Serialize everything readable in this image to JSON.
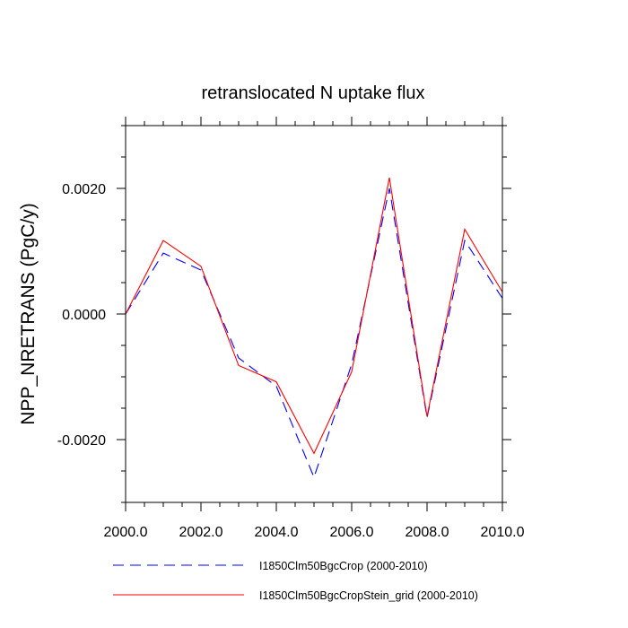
{
  "chart_data": {
    "type": "line",
    "title": "retranslocated N uptake flux",
    "xlabel": "",
    "ylabel": "NPP_NRETRANS  (PgC/y)",
    "xlim": [
      2000.0,
      2010.0
    ],
    "ylim": [
      -0.003,
      0.003
    ],
    "x_ticks": [
      2000,
      2002,
      2004,
      2006,
      2008,
      2010
    ],
    "x_tick_labels": [
      "2000.0",
      "2002.0",
      "2004.0",
      "2006.0",
      "2008.0",
      "2010.0"
    ],
    "y_ticks": [
      -0.002,
      0.0,
      0.002
    ],
    "y_tick_labels": [
      "-0.0020",
      "0.0000",
      "0.0020"
    ],
    "grid": false,
    "legend_position": "bottom",
    "x": [
      2000,
      2001,
      2002,
      2003,
      2004,
      2005,
      2006,
      2007,
      2008,
      2009,
      2010
    ],
    "series": [
      {
        "name": "I1850Clm50BgcCrop (2000-2010)",
        "color": "#0000ff",
        "dash": "dashed",
        "values": [
          0.0,
          0.00097,
          0.0007,
          -0.0007,
          -0.00115,
          -0.0026,
          -0.0008,
          0.002,
          -0.00165,
          0.00117,
          0.00025
        ]
      },
      {
        "name": "I1850Clm50BgcCropStein_grid (2000-2010)",
        "color": "#ff0000",
        "dash": "solid",
        "values": [
          0.0,
          0.00117,
          0.00076,
          -0.00082,
          -0.00108,
          -0.00222,
          -0.00092,
          0.00217,
          -0.00163,
          0.00135,
          0.00035
        ]
      }
    ]
  }
}
